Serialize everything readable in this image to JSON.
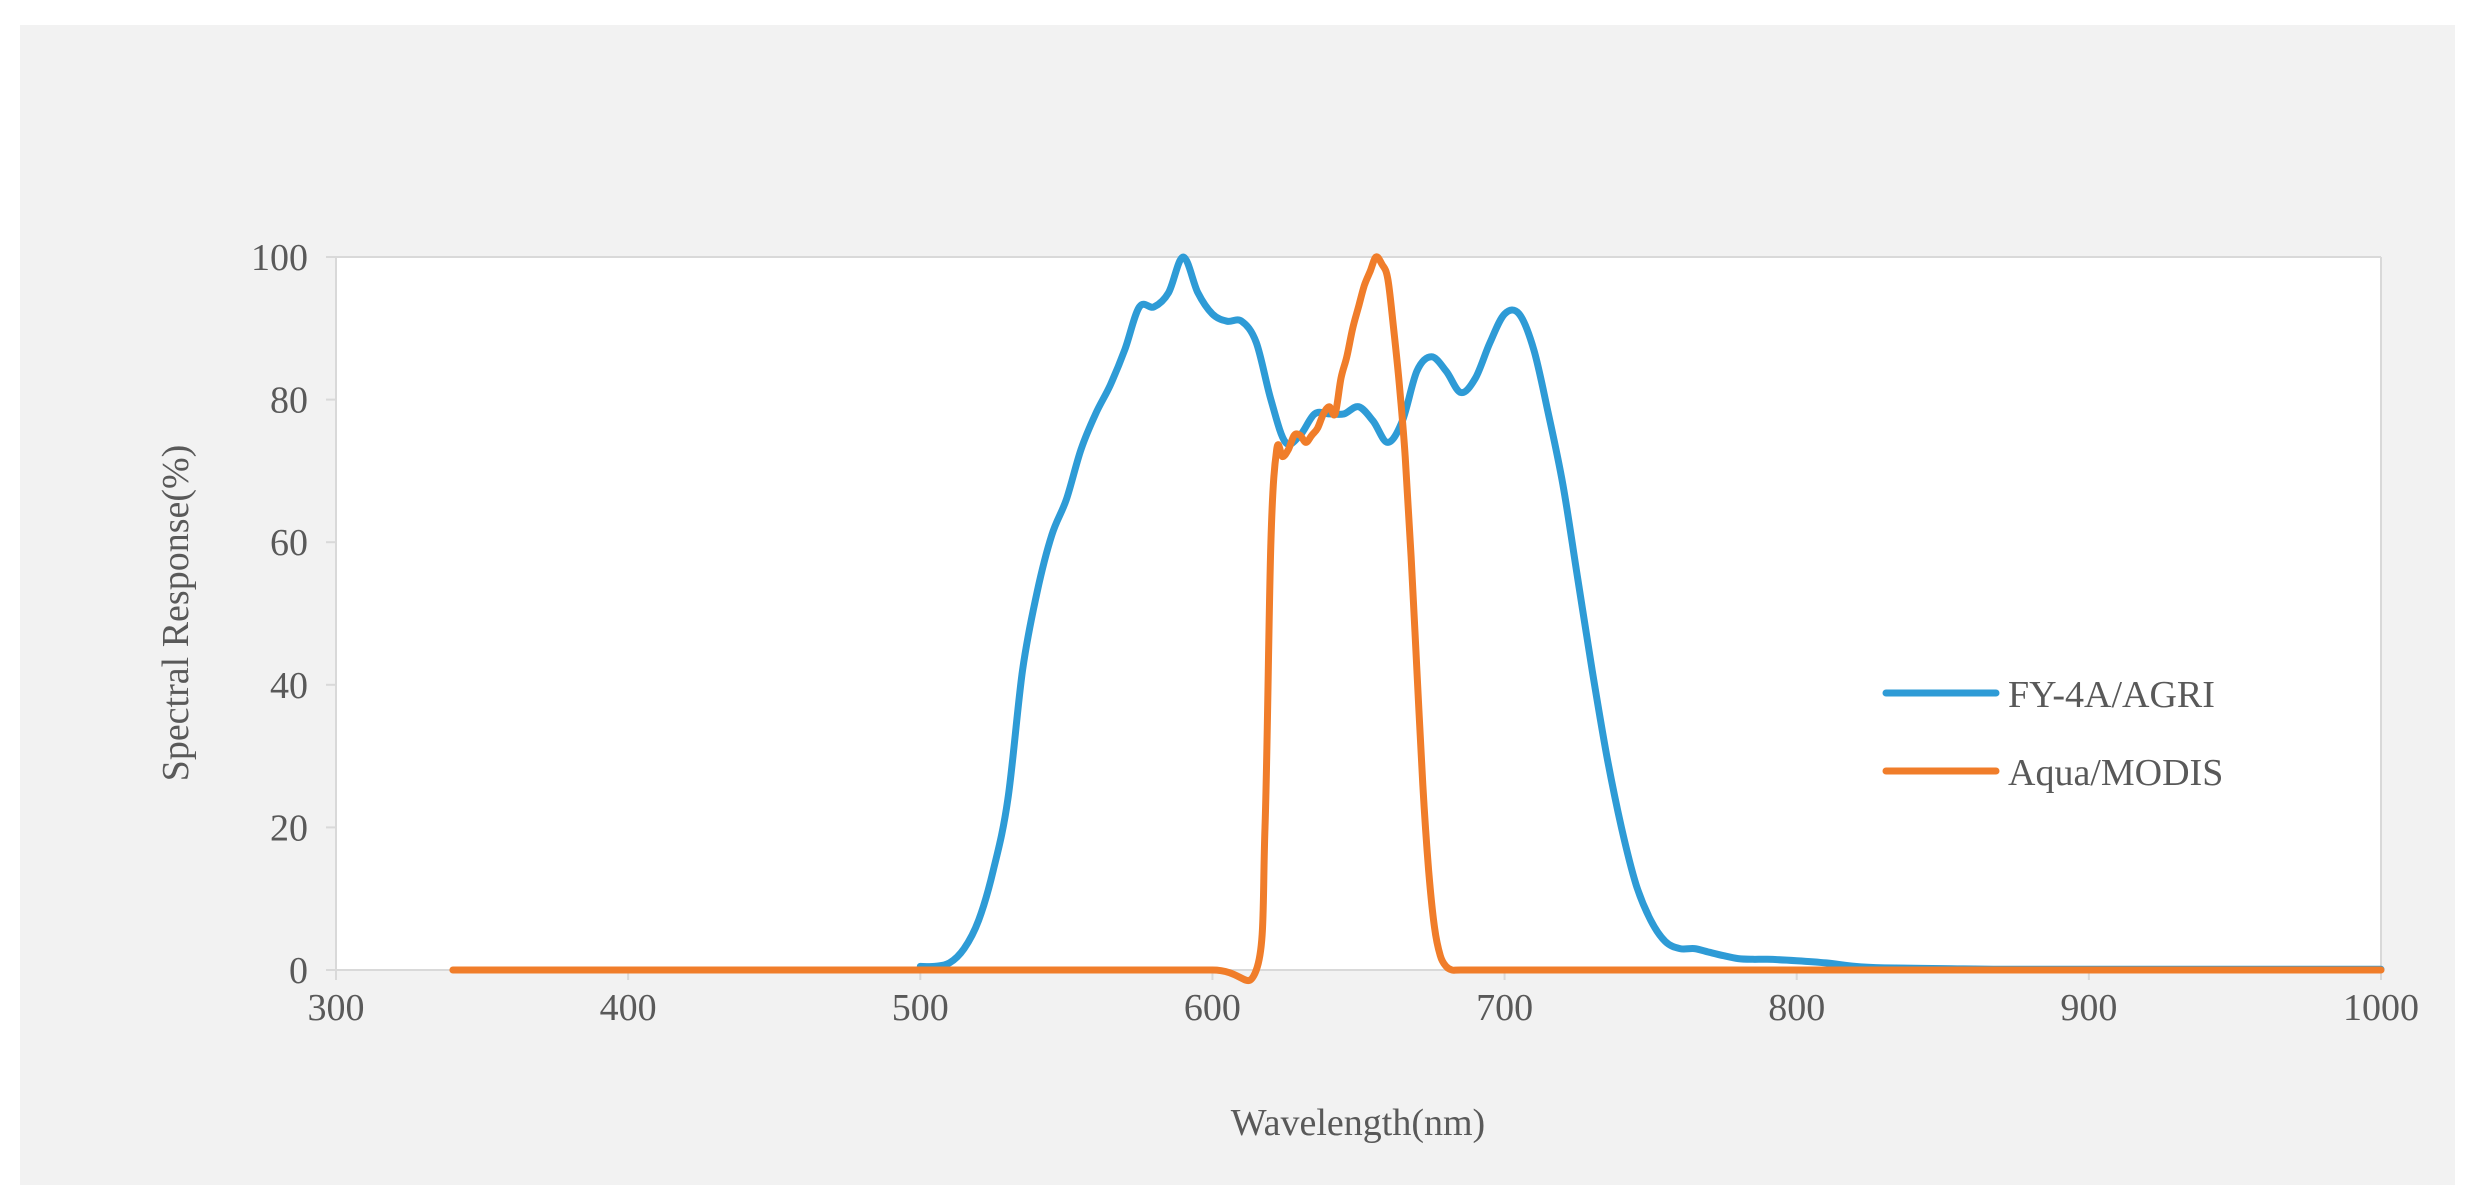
{
  "chart_data": {
    "type": "line",
    "title": "",
    "xlabel": "Wavelength(nm)",
    "ylabel": "Spectral Response(%)",
    "xlim": [
      300,
      1000
    ],
    "ylim": [
      0,
      100
    ],
    "xticks": [
      300,
      400,
      500,
      600,
      700,
      800,
      900,
      1000
    ],
    "yticks": [
      0,
      20,
      40,
      60,
      80,
      100
    ],
    "grid": false,
    "legend_position": "right",
    "series": [
      {
        "name": "FY-4A/AGRI",
        "color": "#2e9bd6",
        "x": [
          500,
          505,
          510,
          515,
          520,
          525,
          530,
          535,
          540,
          545,
          550,
          555,
          560,
          565,
          570,
          575,
          580,
          585,
          590,
          595,
          600,
          605,
          610,
          615,
          620,
          625,
          630,
          635,
          640,
          645,
          650,
          655,
          660,
          665,
          670,
          675,
          680,
          685,
          690,
          695,
          700,
          705,
          710,
          715,
          720,
          725,
          730,
          735,
          740,
          745,
          750,
          755,
          760,
          765,
          770,
          775,
          780,
          785,
          790,
          800,
          810,
          820,
          830,
          850,
          870,
          900,
          950,
          1000
        ],
        "y": [
          0.5,
          0.5,
          1,
          3,
          7,
          14,
          24,
          42,
          53,
          61,
          66,
          73,
          78,
          82,
          87,
          93,
          93,
          95,
          100,
          95,
          92,
          91,
          91,
          88,
          80,
          74,
          75,
          78,
          78,
          78,
          79,
          77,
          74,
          77,
          84,
          86,
          84,
          81,
          83,
          88,
          92,
          92,
          87,
          78,
          68,
          55,
          42,
          30,
          20,
          12,
          7,
          4,
          3,
          3,
          2.5,
          2,
          1.6,
          1.5,
          1.5,
          1.3,
          1,
          0.5,
          0.3,
          0.2,
          0.1,
          0.1,
          0.1,
          0.1
        ]
      },
      {
        "name": "Aqua/MODIS",
        "color": "#f07d2a",
        "x": [
          340,
          400,
          450,
          500,
          550,
          600,
          615,
          618,
          620,
          622,
          624,
          626,
          628,
          630,
          632,
          634,
          636,
          638,
          640,
          642,
          644,
          646,
          648,
          650,
          652,
          654,
          656,
          658,
          660,
          662,
          664,
          666,
          668,
          670,
          672,
          674,
          676,
          678,
          680,
          682,
          685,
          700,
          800,
          900,
          1000
        ],
        "y": [
          0,
          0,
          0,
          0,
          0,
          0,
          0,
          20,
          60,
          73,
          72,
          73,
          75,
          75,
          74,
          75,
          76,
          78,
          79,
          78,
          83,
          86,
          90,
          93,
          96,
          98,
          100,
          99,
          97,
          90,
          82,
          72,
          58,
          42,
          26,
          14,
          6,
          2,
          0.5,
          0,
          0,
          0,
          0,
          0,
          0
        ]
      }
    ]
  }
}
